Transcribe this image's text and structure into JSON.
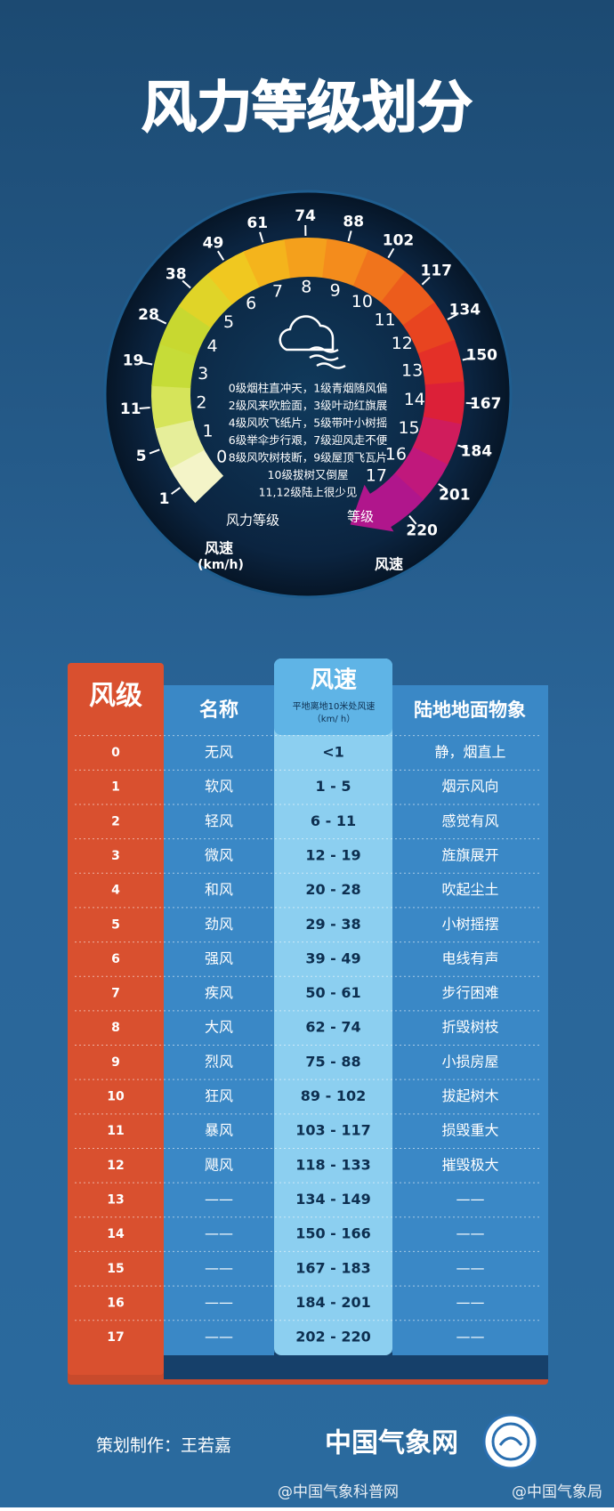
{
  "title": "风力等级划分",
  "gauge": {
    "speeds": [
      "1",
      "5",
      "11",
      "19",
      "28",
      "38",
      "49",
      "61",
      "74",
      "88",
      "102",
      "117",
      "134",
      "150",
      "167",
      "184",
      "201",
      "220"
    ],
    "levels": [
      "0",
      "1",
      "2",
      "3",
      "4",
      "5",
      "6",
      "7",
      "8",
      "9",
      "10",
      "11",
      "12",
      "13",
      "14",
      "15",
      "16",
      "17"
    ],
    "description": [
      "0级烟柱直冲天，1级青烟随风偏",
      "2级风来吹脸面，3级叶动红旗展",
      "4级风吹飞纸片，5级带叶小树摇",
      "6级举伞步行艰，7级迎风走不便",
      "8级风吹树枝断，9级屋顶飞瓦片",
      "10级拔树又倒屋",
      "11,12级陆上很少见"
    ],
    "level_label": "风力等级",
    "level_label_right": "等级",
    "speed_label": "风速",
    "speed_unit": "(km/h)",
    "speed_label_right": "风速"
  },
  "table": {
    "headers": {
      "level": "风级",
      "name": "名称",
      "speed": "风速",
      "speed_note": "平地离地10米处风速",
      "speed_unit": "（km/ h）",
      "phenomenon": "陆地地面物象"
    },
    "rows": [
      [
        "0",
        "无风",
        "<1",
        "静，烟直上"
      ],
      [
        "1",
        "软风",
        "1 - 5",
        "烟示风向"
      ],
      [
        "2",
        "轻风",
        "6 - 11",
        "感觉有风"
      ],
      [
        "3",
        "微风",
        "12 - 19",
        "旌旗展开"
      ],
      [
        "4",
        "和风",
        "20 - 28",
        "吹起尘土"
      ],
      [
        "5",
        "劲风",
        "29 - 38",
        "小树摇摆"
      ],
      [
        "6",
        "强风",
        "39 - 49",
        "电线有声"
      ],
      [
        "7",
        "疾风",
        "50 - 61",
        "步行困难"
      ],
      [
        "8",
        "大风",
        "62 - 74",
        "折毁树枝"
      ],
      [
        "9",
        "烈风",
        "75 - 88",
        "小损房屋"
      ],
      [
        "10",
        "狂风",
        "89 - 102",
        "拔起树木"
      ],
      [
        "11",
        "暴风",
        "103 - 117",
        "损毁重大"
      ],
      [
        "12",
        "飓风",
        "118 - 133",
        "摧毁极大"
      ],
      [
        "13",
        "——",
        "134 - 149",
        "——"
      ],
      [
        "14",
        "——",
        "150 - 166",
        "——"
      ],
      [
        "15",
        "——",
        "167 - 183",
        "——"
      ],
      [
        "16",
        "——",
        "184 - 201",
        "——"
      ],
      [
        "17",
        "——",
        "202 - 220",
        "——"
      ]
    ]
  },
  "footer": {
    "credit": "策划制作：王若嘉",
    "brand": "中国气象网",
    "watermark_left": "@中国气象科普网",
    "watermark_right": "@中国气象局"
  }
}
